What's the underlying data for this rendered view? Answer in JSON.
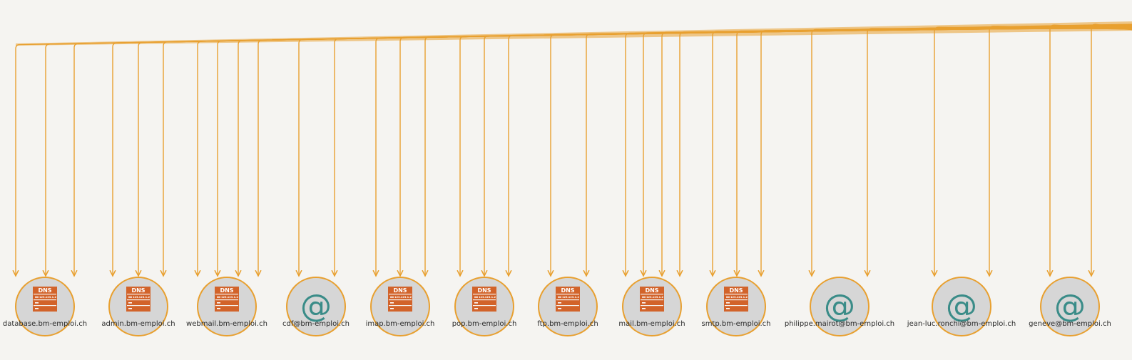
{
  "colors": {
    "edge": "#e8a030",
    "node_fill": "#d6d6d6",
    "node_stroke": "#e8a030",
    "dns_icon": "#d2632a",
    "email_icon": "#3a8c88",
    "background": "#f5f4f1"
  },
  "icon_text": {
    "dns_title": "DNS",
    "dns_ip": "123.123.1.2",
    "email_glyph": "@"
  },
  "nodes": [
    {
      "id": "n0",
      "type": "dns",
      "icon": "dns-server-icon",
      "label": "database.bm-emploi.ch",
      "incoming_edges": 3
    },
    {
      "id": "n1",
      "type": "dns",
      "icon": "dns-server-icon",
      "label": "admin.bm-emploi.ch",
      "incoming_edges": 3
    },
    {
      "id": "n2",
      "type": "dns",
      "icon": "dns-server-icon",
      "label": "webmail.bm-emploi.ch",
      "incoming_edges": 4
    },
    {
      "id": "n3",
      "type": "email",
      "icon": "at-sign-icon",
      "label": "cdf@bm-emploi.ch",
      "incoming_edges": 2
    },
    {
      "id": "n4",
      "type": "dns",
      "icon": "dns-server-icon",
      "label": "imap.bm-emploi.ch",
      "incoming_edges": 3
    },
    {
      "id": "n5",
      "type": "dns",
      "icon": "dns-server-icon",
      "label": "pop.bm-emploi.ch",
      "incoming_edges": 3
    },
    {
      "id": "n6",
      "type": "dns",
      "icon": "dns-server-icon",
      "label": "ftp.bm-emploi.ch",
      "incoming_edges": 2
    },
    {
      "id": "n7",
      "type": "dns",
      "icon": "dns-server-icon",
      "label": "mail.bm-emploi.ch",
      "incoming_edges": 4
    },
    {
      "id": "n8",
      "type": "dns",
      "icon": "dns-server-icon",
      "label": "smtp.bm-emploi.ch",
      "incoming_edges": 3
    },
    {
      "id": "n9",
      "type": "email",
      "icon": "at-sign-icon",
      "label": "philippe.mairot@bm-emploi.ch",
      "incoming_edges": 2
    },
    {
      "id": "n10",
      "type": "email",
      "icon": "at-sign-icon",
      "label": "jean-luc.ronchi@bm-emploi.ch",
      "incoming_edges": 2
    },
    {
      "id": "n11",
      "type": "email",
      "icon": "at-sign-icon",
      "label": "geneve@bm-emploi.ch",
      "incoming_edges": 2
    }
  ]
}
